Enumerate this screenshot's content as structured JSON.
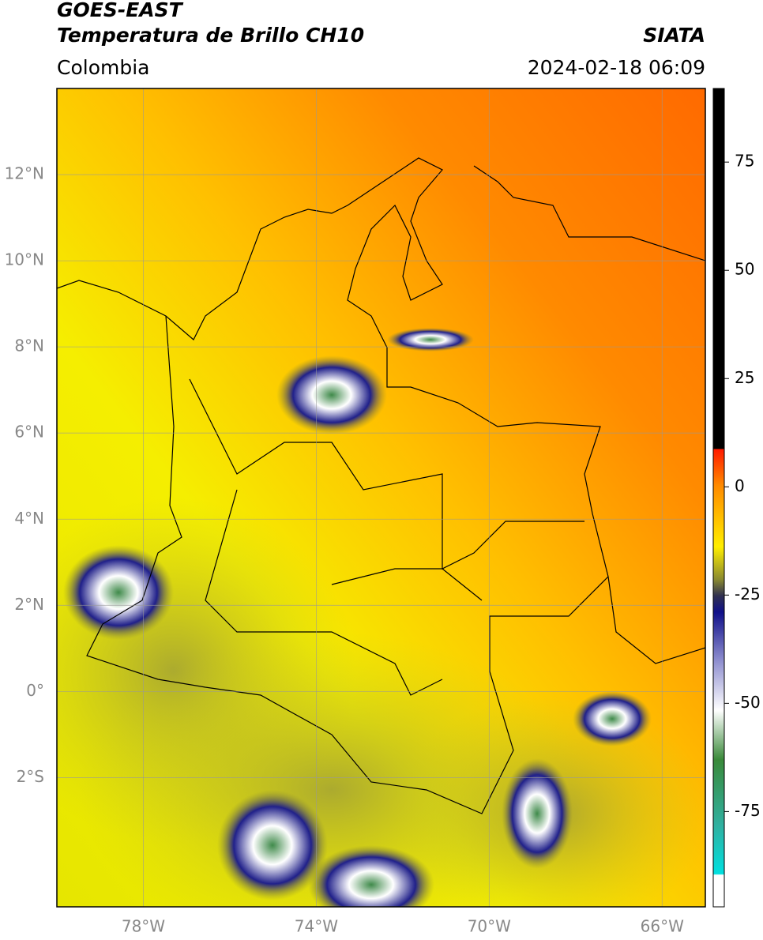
{
  "header": {
    "title": "GOES-EAST",
    "subtitle": "Temperatura de Brillo CH10",
    "source": "SIATA",
    "region": "Colombia",
    "datetime": "2024-02-18 06:09"
  },
  "map": {
    "lon_range": [
      -80,
      -65
    ],
    "lat_range": [
      -5,
      14
    ],
    "lat_ticks": [
      {
        "value": 12,
        "label": "12°N"
      },
      {
        "value": 10,
        "label": "10°N"
      },
      {
        "value": 8,
        "label": "8°N"
      },
      {
        "value": 6,
        "label": "6°N"
      },
      {
        "value": 4,
        "label": "4°N"
      },
      {
        "value": 2,
        "label": "2°N"
      },
      {
        "value": 0,
        "label": "0°"
      },
      {
        "value": -2,
        "label": "2°S"
      }
    ],
    "lon_ticks": [
      {
        "value": -78,
        "label": "78°W"
      },
      {
        "value": -74,
        "label": "74°W"
      },
      {
        "value": -70,
        "label": "70°W"
      },
      {
        "value": -66,
        "label": "66°W"
      }
    ]
  },
  "colorbar": {
    "range": [
      -97,
      92
    ],
    "ticks": [
      75,
      50,
      25,
      0,
      -25,
      -50,
      -75
    ]
  }
}
